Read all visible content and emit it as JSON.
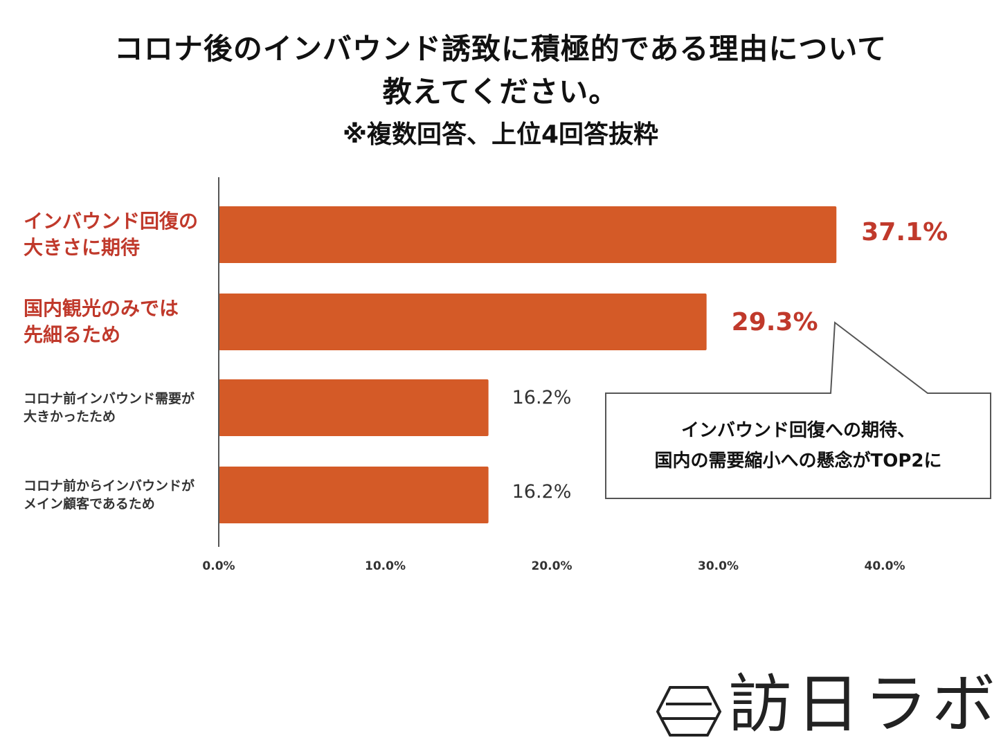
{
  "title": {
    "line1": "コロナ後のインバウンド誘致に積極的である理由について",
    "line2": "教えてください。",
    "subtitle": "※複数回答、上位4回答抜粋"
  },
  "chart_data": {
    "type": "bar",
    "orientation": "horizontal",
    "categories": [
      "インバウンド回復の\n大きさに期待",
      "国内観光のみでは\n先細るため",
      "コロナ前インバウンド需要が\n大きかったため",
      "コロナ前からインバウンドが\nメイン顧客であるため"
    ],
    "values": [
      37.1,
      29.3,
      16.2,
      16.2
    ],
    "value_labels": [
      "37.1%",
      "29.3%",
      "16.2%",
      "16.2%"
    ],
    "highlighted": [
      true,
      true,
      false,
      false
    ],
    "xlim": [
      0,
      40
    ],
    "xticks": [
      "0.0%",
      "10.0%",
      "20.0%",
      "30.0%",
      "40.0%"
    ],
    "unit": "%",
    "bar_color": "#d45a27",
    "highlight_text_color": "#c0392b"
  },
  "callout": {
    "line1": "インバウンド回復への期待、",
    "line2": "国内の需要縮小への懸念がTOP2に"
  },
  "logo": {
    "text": "訪日ラボ"
  },
  "colors": {
    "bar": "#d45a27",
    "highlight_text": "#c0392b",
    "axis": "#555555",
    "callout_border": "#555555"
  }
}
